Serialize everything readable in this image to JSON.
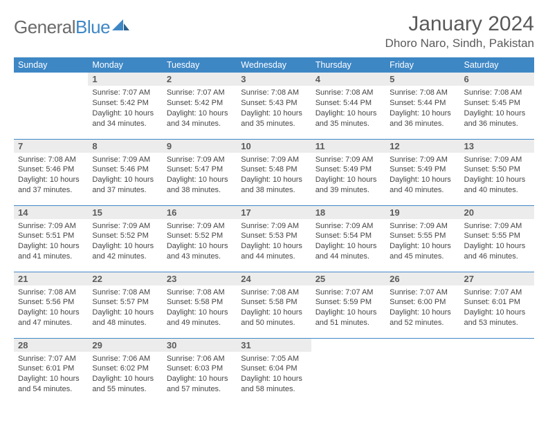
{
  "brand": {
    "part1": "General",
    "part2": "Blue"
  },
  "title": "January 2024",
  "location": "Dhoro Naro, Sindh, Pakistan",
  "colors": {
    "header_bg": "#3e87c5",
    "header_text": "#ffffff",
    "daynum_bg": "#ececec",
    "text": "#444444",
    "rule": "#3e87c5"
  },
  "weekdays": [
    "Sunday",
    "Monday",
    "Tuesday",
    "Wednesday",
    "Thursday",
    "Friday",
    "Saturday"
  ],
  "first_weekday_index": 1,
  "days": [
    {
      "n": 1,
      "sr": "7:07 AM",
      "ss": "5:42 PM",
      "dl": "10 hours and 34 minutes."
    },
    {
      "n": 2,
      "sr": "7:07 AM",
      "ss": "5:42 PM",
      "dl": "10 hours and 34 minutes."
    },
    {
      "n": 3,
      "sr": "7:08 AM",
      "ss": "5:43 PM",
      "dl": "10 hours and 35 minutes."
    },
    {
      "n": 4,
      "sr": "7:08 AM",
      "ss": "5:44 PM",
      "dl": "10 hours and 35 minutes."
    },
    {
      "n": 5,
      "sr": "7:08 AM",
      "ss": "5:44 PM",
      "dl": "10 hours and 36 minutes."
    },
    {
      "n": 6,
      "sr": "7:08 AM",
      "ss": "5:45 PM",
      "dl": "10 hours and 36 minutes."
    },
    {
      "n": 7,
      "sr": "7:08 AM",
      "ss": "5:46 PM",
      "dl": "10 hours and 37 minutes."
    },
    {
      "n": 8,
      "sr": "7:09 AM",
      "ss": "5:46 PM",
      "dl": "10 hours and 37 minutes."
    },
    {
      "n": 9,
      "sr": "7:09 AM",
      "ss": "5:47 PM",
      "dl": "10 hours and 38 minutes."
    },
    {
      "n": 10,
      "sr": "7:09 AM",
      "ss": "5:48 PM",
      "dl": "10 hours and 38 minutes."
    },
    {
      "n": 11,
      "sr": "7:09 AM",
      "ss": "5:49 PM",
      "dl": "10 hours and 39 minutes."
    },
    {
      "n": 12,
      "sr": "7:09 AM",
      "ss": "5:49 PM",
      "dl": "10 hours and 40 minutes."
    },
    {
      "n": 13,
      "sr": "7:09 AM",
      "ss": "5:50 PM",
      "dl": "10 hours and 40 minutes."
    },
    {
      "n": 14,
      "sr": "7:09 AM",
      "ss": "5:51 PM",
      "dl": "10 hours and 41 minutes."
    },
    {
      "n": 15,
      "sr": "7:09 AM",
      "ss": "5:52 PM",
      "dl": "10 hours and 42 minutes."
    },
    {
      "n": 16,
      "sr": "7:09 AM",
      "ss": "5:52 PM",
      "dl": "10 hours and 43 minutes."
    },
    {
      "n": 17,
      "sr": "7:09 AM",
      "ss": "5:53 PM",
      "dl": "10 hours and 44 minutes."
    },
    {
      "n": 18,
      "sr": "7:09 AM",
      "ss": "5:54 PM",
      "dl": "10 hours and 44 minutes."
    },
    {
      "n": 19,
      "sr": "7:09 AM",
      "ss": "5:55 PM",
      "dl": "10 hours and 45 minutes."
    },
    {
      "n": 20,
      "sr": "7:09 AM",
      "ss": "5:55 PM",
      "dl": "10 hours and 46 minutes."
    },
    {
      "n": 21,
      "sr": "7:08 AM",
      "ss": "5:56 PM",
      "dl": "10 hours and 47 minutes."
    },
    {
      "n": 22,
      "sr": "7:08 AM",
      "ss": "5:57 PM",
      "dl": "10 hours and 48 minutes."
    },
    {
      "n": 23,
      "sr": "7:08 AM",
      "ss": "5:58 PM",
      "dl": "10 hours and 49 minutes."
    },
    {
      "n": 24,
      "sr": "7:08 AM",
      "ss": "5:58 PM",
      "dl": "10 hours and 50 minutes."
    },
    {
      "n": 25,
      "sr": "7:07 AM",
      "ss": "5:59 PM",
      "dl": "10 hours and 51 minutes."
    },
    {
      "n": 26,
      "sr": "7:07 AM",
      "ss": "6:00 PM",
      "dl": "10 hours and 52 minutes."
    },
    {
      "n": 27,
      "sr": "7:07 AM",
      "ss": "6:01 PM",
      "dl": "10 hours and 53 minutes."
    },
    {
      "n": 28,
      "sr": "7:07 AM",
      "ss": "6:01 PM",
      "dl": "10 hours and 54 minutes."
    },
    {
      "n": 29,
      "sr": "7:06 AM",
      "ss": "6:02 PM",
      "dl": "10 hours and 55 minutes."
    },
    {
      "n": 30,
      "sr": "7:06 AM",
      "ss": "6:03 PM",
      "dl": "10 hours and 57 minutes."
    },
    {
      "n": 31,
      "sr": "7:05 AM",
      "ss": "6:04 PM",
      "dl": "10 hours and 58 minutes."
    }
  ],
  "labels": {
    "sunrise": "Sunrise:",
    "sunset": "Sunset:",
    "daylight": "Daylight:"
  }
}
